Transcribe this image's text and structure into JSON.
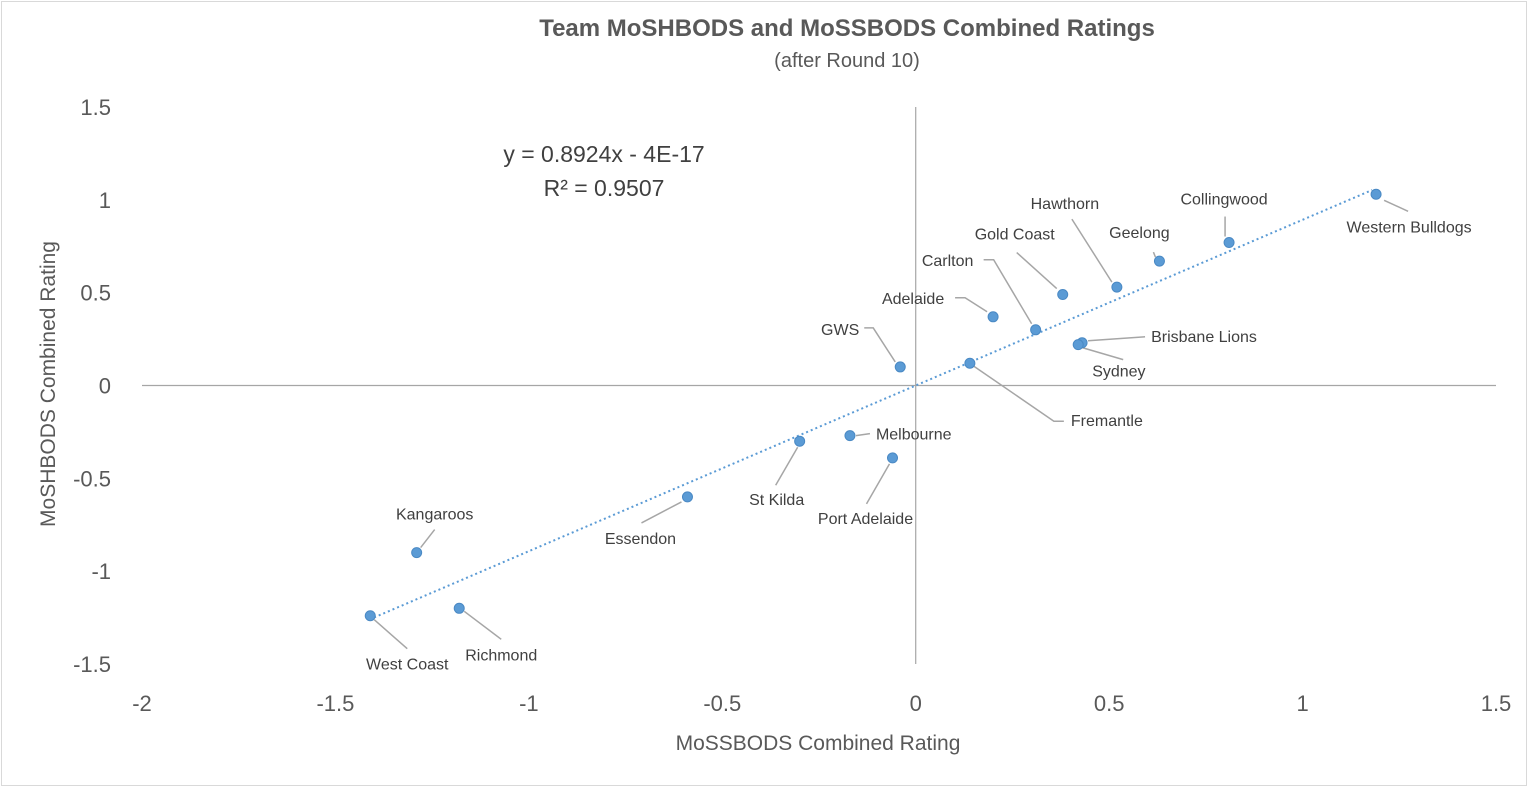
{
  "chart_data": {
    "type": "scatter",
    "title": "Team MoSHBODS and MoSSBODS Combined Ratings",
    "subtitle": "(after Round 10)",
    "xlabel": "MoSSBODS Combined Rating",
    "ylabel": "MoSHBODS Combined Rating",
    "xlim": [
      -2,
      1.5
    ],
    "ylim": [
      -1.5,
      1.5
    ],
    "x_ticks": [
      -2,
      -1.5,
      -1,
      -0.5,
      0,
      0.5,
      1,
      1.5
    ],
    "x_tick_labels": [
      "-2",
      "-1.5",
      "-1",
      "-0.5",
      "0",
      "0.5",
      "1",
      "1.5"
    ],
    "y_ticks": [
      -1.5,
      -1,
      -0.5,
      0,
      0.5,
      1,
      1.5
    ],
    "y_tick_labels": [
      "-1.5",
      "-1",
      "-0.5",
      "0",
      "0.5",
      "1",
      "1.5"
    ],
    "grid": false,
    "legend": "none",
    "trendline": {
      "type": "linear",
      "slope": 0.8924,
      "intercept": 0,
      "x_range": [
        -1.4,
        1.18
      ],
      "equation": "y = 0.8924x - 4E-17",
      "r_squared": "R² = 0.9507"
    },
    "colors": {
      "marker": "#5b9bd5",
      "trend": "#5b9bd5",
      "text": "#595959",
      "leader": "#a6a6a6"
    },
    "points": [
      {
        "label": "Western Bulldogs",
        "x": 1.19,
        "y": 1.03
      },
      {
        "label": "Collingwood",
        "x": 0.81,
        "y": 0.77
      },
      {
        "label": "Geelong",
        "x": 0.63,
        "y": 0.67
      },
      {
        "label": "Hawthorn",
        "x": 0.52,
        "y": 0.53
      },
      {
        "label": "Gold Coast",
        "x": 0.38,
        "y": 0.49
      },
      {
        "label": "Carlton",
        "x": 0.31,
        "y": 0.3
      },
      {
        "label": "Adelaide",
        "x": 0.2,
        "y": 0.37
      },
      {
        "label": "Brisbane Lions",
        "x": 0.43,
        "y": 0.23
      },
      {
        "label": "Sydney",
        "x": 0.42,
        "y": 0.22
      },
      {
        "label": "GWS",
        "x": -0.04,
        "y": 0.1
      },
      {
        "label": "Fremantle",
        "x": 0.14,
        "y": 0.12
      },
      {
        "label": "Melbourne",
        "x": -0.17,
        "y": -0.27
      },
      {
        "label": "St Kilda",
        "x": -0.3,
        "y": -0.3
      },
      {
        "label": "Port Adelaide",
        "x": -0.06,
        "y": -0.39
      },
      {
        "label": "Essendon",
        "x": -0.59,
        "y": -0.6
      },
      {
        "label": "Kangaroos",
        "x": -1.29,
        "y": -0.9
      },
      {
        "label": "Richmond",
        "x": -1.18,
        "y": -1.2
      },
      {
        "label": "West Coast",
        "x": -1.41,
        "y": -1.24
      }
    ]
  }
}
